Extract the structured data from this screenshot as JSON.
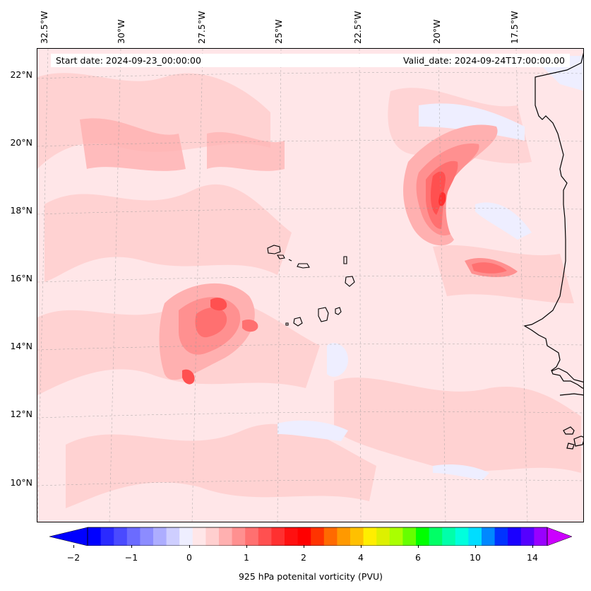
{
  "header": {
    "start_date": "Start date: 2024-09-23_00:00:00",
    "valid_date": "Valid_date: 2024-09-24T17:00:00.00"
  },
  "axes": {
    "lon_labels": [
      "32.5°W",
      "30°W",
      "27.5°W",
      "25°W",
      "22.5°W",
      "20°W",
      "17.5°W"
    ],
    "lat_labels": [
      "22°N",
      "20°N",
      "18°N",
      "16°N",
      "14°N",
      "12°N",
      "10°N"
    ]
  },
  "colorbar": {
    "title": "925 hPa potenital vorticity (PVU)",
    "tick_labels": [
      "−2",
      "−1",
      "0",
      "1",
      "2",
      "4",
      "6",
      "10",
      "14"
    ],
    "extend": "both",
    "colors": [
      "#0000ff",
      "#2a2aff",
      "#4a4aff",
      "#6b6bff",
      "#8c8cff",
      "#adadff",
      "#ceceff",
      "#eeeeff",
      "#ffe6e8",
      "#ffcfcf",
      "#ffb0b0",
      "#ff9090",
      "#ff7070",
      "#ff5050",
      "#ff3030",
      "#ff1010",
      "#ff0000",
      "#ff3300",
      "#ff6a00",
      "#ff9900",
      "#ffc000",
      "#ffee00",
      "#ddf000",
      "#aaff00",
      "#66ff00",
      "#00ff00",
      "#00ff66",
      "#00ffaa",
      "#00ffdd",
      "#00ddff",
      "#0088ff",
      "#0033ff",
      "#1a00ff",
      "#5500ff",
      "#9900ff"
    ],
    "under_color": "#0000ff",
    "over_color": "#cc00ff"
  },
  "map": {
    "background_color": "#ffe6e8",
    "coastline_color": "#000000",
    "gridline_style": "dashed",
    "projection": "conic"
  }
}
